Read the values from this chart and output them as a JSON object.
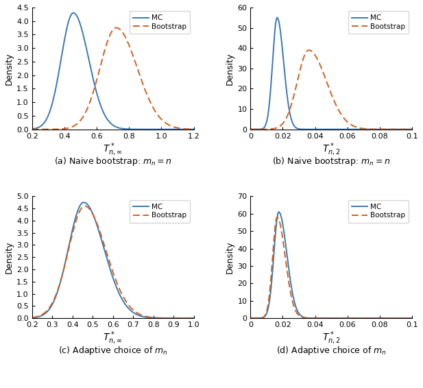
{
  "mc_color": "#3878b4",
  "boot_color": "#d45f1e",
  "mc_label": "MC",
  "boot_label": "Bootstrap",
  "subplot_captions": [
    "(a) Naive bootstrap: $m_n = n$",
    "(b) Naive bootstrap: $m_n = n$",
    "(c) Adaptive choice of $m_n$",
    "(d) Adaptive choice of $m_n$"
  ],
  "xlabels": [
    "$T_{n,\\infty}^*$",
    "$T_{n,2}^*$",
    "$T_{n,\\infty}^*$",
    "$T_{n,2}^*$"
  ],
  "ylabel": "Density",
  "panels": [
    {
      "xlim": [
        0.2,
        1.2
      ],
      "ylim": [
        0,
        4.5
      ],
      "xticks": [
        0.2,
        0.4,
        0.6,
        0.8,
        1.0,
        1.2
      ],
      "yticks": [
        0,
        0.5,
        1.0,
        1.5,
        2.0,
        2.5,
        3.0,
        3.5,
        4.0,
        4.5
      ],
      "mc_mu": 0.455,
      "mc_sig_l": 0.075,
      "mc_sig_r": 0.095,
      "mc_peak": 4.3,
      "boot_mu": 0.72,
      "boot_sig_l": 0.1,
      "boot_sig_r": 0.13,
      "boot_peak": 3.75
    },
    {
      "xlim": [
        0.0,
        0.1
      ],
      "ylim": [
        0,
        60
      ],
      "xticks": [
        0.0,
        0.02,
        0.04,
        0.06,
        0.08,
        0.1
      ],
      "yticks": [
        0,
        10,
        20,
        30,
        40,
        50,
        60
      ],
      "mc_mu": 0.0165,
      "mc_sig_l": 0.0028,
      "mc_sig_r": 0.004,
      "mc_peak": 55,
      "boot_mu": 0.036,
      "boot_sig_l": 0.007,
      "boot_sig_r": 0.011,
      "boot_peak": 39
    },
    {
      "xlim": [
        0.2,
        1.0
      ],
      "ylim": [
        0,
        5.0
      ],
      "xticks": [
        0.2,
        0.3,
        0.4,
        0.5,
        0.6,
        0.7,
        0.8,
        0.9,
        1.0
      ],
      "yticks": [
        0,
        0.5,
        1.0,
        1.5,
        2.0,
        2.5,
        3.0,
        3.5,
        4.0,
        4.5,
        5.0
      ],
      "mc_mu": 0.455,
      "mc_sig_l": 0.075,
      "mc_sig_r": 0.1,
      "mc_peak": 4.75,
      "boot_mu": 0.46,
      "boot_sig_l": 0.08,
      "boot_sig_r": 0.105,
      "boot_peak": 4.6
    },
    {
      "xlim": [
        0.0,
        0.1
      ],
      "ylim": [
        0,
        70
      ],
      "xticks": [
        0.0,
        0.02,
        0.04,
        0.06,
        0.08,
        0.1
      ],
      "yticks": [
        0,
        10,
        20,
        30,
        40,
        50,
        60,
        70
      ],
      "mc_mu": 0.0175,
      "mc_sig_l": 0.003,
      "mc_sig_r": 0.005,
      "mc_peak": 61,
      "boot_mu": 0.0165,
      "boot_sig_l": 0.0028,
      "boot_sig_r": 0.005,
      "boot_peak": 58
    }
  ]
}
